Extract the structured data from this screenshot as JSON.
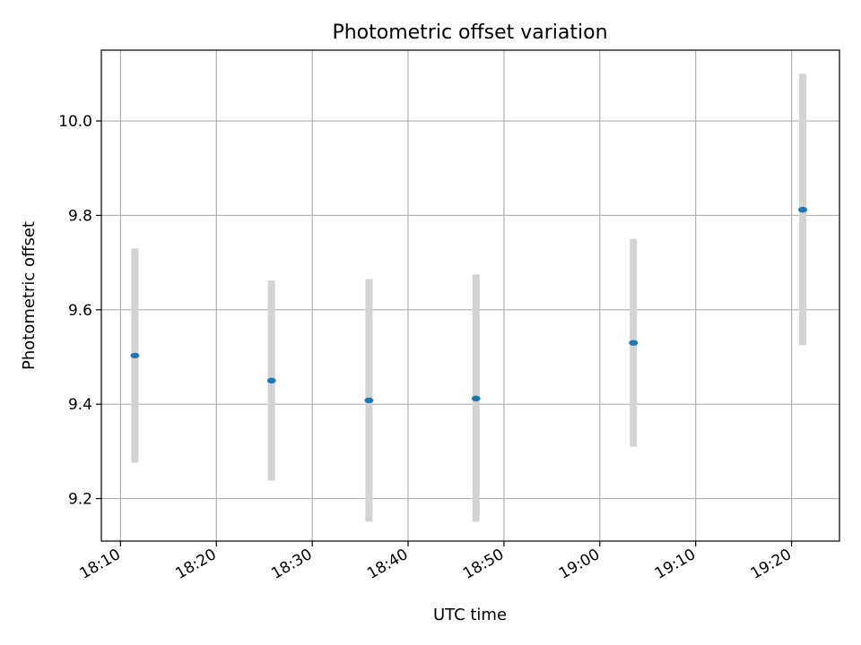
{
  "chart_data": {
    "type": "scatter",
    "title": "Photometric offset variation",
    "xlabel": "UTC time",
    "ylabel": "Photometric offset",
    "grid": true,
    "x_tick_labels": [
      "18:10",
      "18:20",
      "18:30",
      "18:40",
      "18:50",
      "19:00",
      "19:10",
      "19:20"
    ],
    "y_tick_labels": [
      "9.2",
      "9.4",
      "9.6",
      "9.8",
      "10.0"
    ],
    "y_ticks": [
      9.2,
      9.4,
      9.6,
      9.8,
      10.0
    ],
    "xlim": [
      "18:08",
      "19:25"
    ],
    "ylim": [
      9.11,
      10.15
    ],
    "points": [
      {
        "x": "18:11:30",
        "y": 9.503,
        "ymin": 9.276,
        "ymax": 9.73
      },
      {
        "x": "18:25:45",
        "y": 9.45,
        "ymin": 9.238,
        "ymax": 9.662
      },
      {
        "x": "18:35:55",
        "y": 9.408,
        "ymin": 9.151,
        "ymax": 9.665
      },
      {
        "x": "18:47:05",
        "y": 9.412,
        "ymin": 9.151,
        "ymax": 9.675
      },
      {
        "x": "19:03:30",
        "y": 9.53,
        "ymin": 9.31,
        "ymax": 9.75
      },
      {
        "x": "19:21:10",
        "y": 9.812,
        "ymin": 9.525,
        "ymax": 10.1
      }
    ],
    "colors": {
      "marker": "#1f77b4",
      "errorbar": "#d3d3d3",
      "grid": "#b0b0b0",
      "axes": "#000000"
    }
  }
}
